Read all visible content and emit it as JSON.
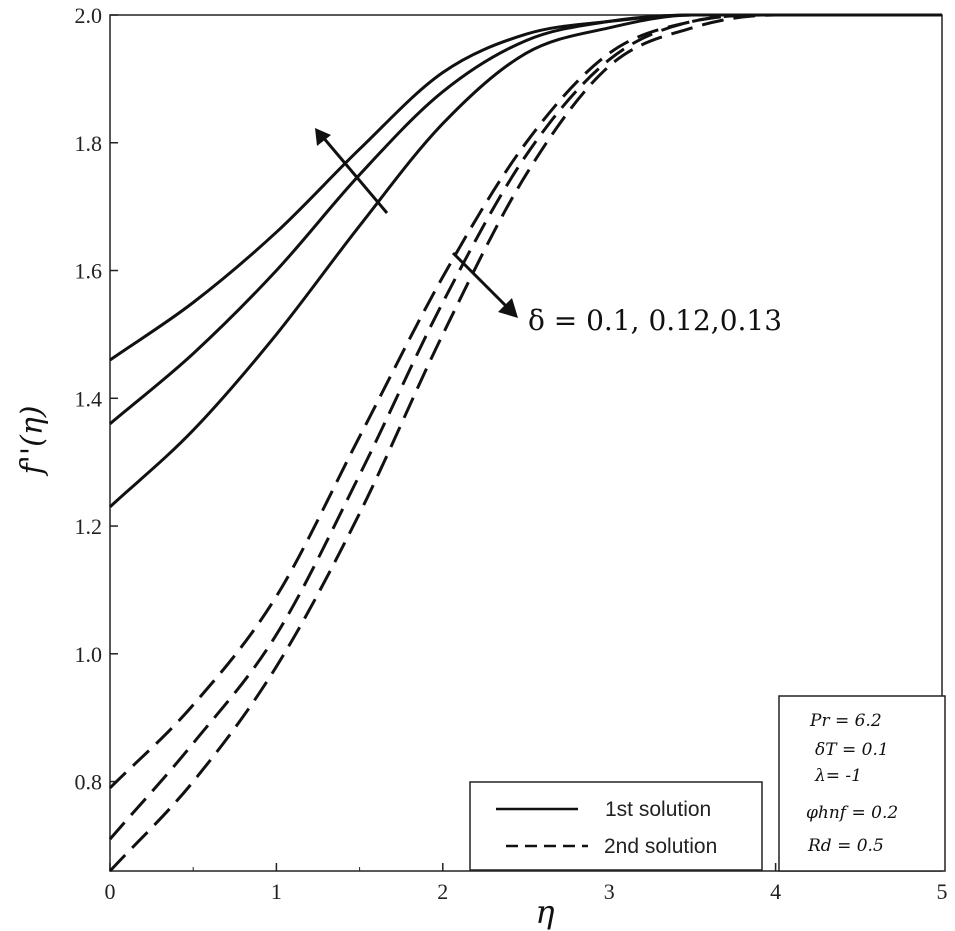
{
  "chart_data": {
    "type": "line",
    "xlabel": "η",
    "ylabel": "f''(η)",
    "xlim": [
      0,
      5
    ],
    "ylim": [
      0.66,
      2.0
    ],
    "x_ticks": [
      "0",
      "1",
      "2",
      "3",
      "4",
      "5"
    ],
    "y_ticks": [
      "0.8",
      "1.0",
      "1.2",
      "1.4",
      "1.6",
      "1.8",
      "2.0"
    ],
    "grid": false,
    "legend": {
      "placement": "bottom-center",
      "entries": [
        "1st solution",
        "2nd solution"
      ]
    },
    "annotation": "δ = 0.1, 0.12,0.13",
    "parameters": [
      "Pr = 6.2",
      "δT = 0.1",
      "λ= -1",
      "φhnf = 0.2",
      "Rd = 0.5"
    ],
    "series": [
      {
        "style": "solid",
        "x": [
          0,
          0.5,
          1.0,
          1.5,
          2.0,
          2.5,
          3.0,
          3.5,
          4.0,
          5.0
        ],
        "y": [
          1.46,
          1.55,
          1.66,
          1.79,
          1.91,
          1.97,
          1.99,
          2.0,
          2.0,
          2.0
        ]
      },
      {
        "style": "solid",
        "x": [
          0,
          0.5,
          1.0,
          1.5,
          2.0,
          2.5,
          3.0,
          3.5,
          4.0,
          5.0
        ],
        "y": [
          1.36,
          1.47,
          1.6,
          1.75,
          1.88,
          1.96,
          1.99,
          2.0,
          2.0,
          2.0
        ]
      },
      {
        "style": "solid",
        "x": [
          0,
          0.5,
          1.0,
          1.5,
          2.0,
          2.5,
          3.0,
          3.5,
          4.0,
          5.0
        ],
        "y": [
          1.23,
          1.35,
          1.5,
          1.67,
          1.83,
          1.94,
          1.98,
          2.0,
          2.0,
          2.0
        ]
      },
      {
        "style": "dashed",
        "x": [
          0,
          0.5,
          1.0,
          1.5,
          2.0,
          2.5,
          3.0,
          3.5,
          4.0,
          5.0
        ],
        "y": [
          0.79,
          0.92,
          1.09,
          1.34,
          1.59,
          1.8,
          1.94,
          1.99,
          2.0,
          2.0
        ]
      },
      {
        "style": "dashed",
        "x": [
          0,
          0.5,
          1.0,
          1.5,
          2.0,
          2.5,
          3.0,
          3.5,
          4.0,
          5.0
        ],
        "y": [
          0.71,
          0.86,
          1.03,
          1.28,
          1.55,
          1.78,
          1.93,
          1.99,
          2.0,
          2.0
        ]
      },
      {
        "style": "dashed",
        "x": [
          0,
          0.5,
          1.0,
          1.5,
          2.0,
          2.5,
          3.0,
          3.5,
          4.0,
          5.0
        ],
        "y": [
          0.66,
          0.8,
          0.98,
          1.22,
          1.5,
          1.75,
          1.92,
          1.98,
          2.0,
          2.0
        ]
      }
    ]
  }
}
